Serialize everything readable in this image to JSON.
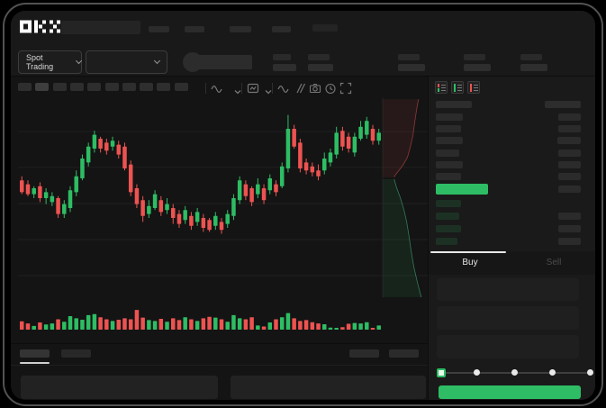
{
  "brand": "OKX",
  "colors": {
    "up": "#2ebd64",
    "down": "#ed5351",
    "depth_ask_fill": "rgba(237,83,81,0.09)",
    "depth_ask_line": "rgba(237,83,81,0.55)",
    "depth_bid_fill": "rgba(46,189,100,0.10)",
    "depth_bid_line": "rgba(80,200,150,0.55)",
    "grid": "#1f1f1f",
    "price_bar": "#2ebd64"
  },
  "header": {
    "market_selector_label": "Spot Trading"
  },
  "trade_panel": {
    "buy_tab": "Buy",
    "sell_tab": "Sell"
  },
  "skeleton": {
    "topnav_items": [
      23,
      22,
      24,
      21
    ],
    "topnav_right_items": [
      28
    ],
    "stat_groups": [
      [
        20,
        26
      ],
      [
        24,
        28
      ],
      [
        24,
        30
      ],
      [
        24,
        30
      ],
      [
        24,
        30
      ]
    ],
    "timeframe_chip_count": 10,
    "active_timeframe_index": 1,
    "orderbook": {
      "header": [
        40,
        40
      ],
      "asks": [
        [
          30,
          25
        ],
        [
          28,
          25
        ],
        [
          30,
          26
        ],
        [
          26,
          25
        ],
        [
          30,
          25
        ],
        [
          28,
          25
        ]
      ],
      "price_row_width": 58,
      "bids": [
        [
          28,
          25
        ],
        [
          26,
          25
        ],
        [
          28,
          25
        ],
        [
          24,
          25
        ]
      ]
    },
    "bottom_tabs": [
      33,
      33
    ],
    "bottom_right_items": [
      33,
      33
    ],
    "bottom_box_widths": [
      219,
      217
    ],
    "form_field_count": 3,
    "slider_stop_count": 5
  },
  "chart_data": {
    "type": "candlestick",
    "title": "",
    "xlabel": "",
    "ylabel": "",
    "price_scale_norm": [
      0,
      100
    ],
    "grid_levels_norm": [
      83.6,
      65.5,
      47.3,
      29.1,
      10.9
    ],
    "candles_ohlc": [
      [
        59,
        61,
        52,
        53
      ],
      [
        57,
        59,
        51,
        52
      ],
      [
        52,
        56,
        50,
        55
      ],
      [
        56,
        58,
        48,
        50
      ],
      [
        50,
        55,
        47,
        53
      ],
      [
        48,
        53,
        46,
        51
      ],
      [
        50,
        51,
        40,
        42
      ],
      [
        42,
        49,
        40,
        47
      ],
      [
        45,
        56,
        43,
        54
      ],
      [
        53,
        64,
        51,
        61
      ],
      [
        60,
        72,
        59,
        70
      ],
      [
        68,
        78,
        66,
        76
      ],
      [
        75,
        84,
        73,
        82
      ],
      [
        80,
        81,
        73,
        75
      ],
      [
        78,
        80,
        72,
        74
      ],
      [
        76,
        81,
        74,
        79
      ],
      [
        77,
        79,
        70,
        72
      ],
      [
        76,
        78,
        64,
        65
      ],
      [
        67,
        69,
        51,
        53
      ],
      [
        55,
        57,
        45,
        47
      ],
      [
        49,
        51,
        38,
        41
      ],
      [
        42,
        49,
        40,
        46
      ],
      [
        45,
        54,
        44,
        52
      ],
      [
        49,
        51,
        41,
        43
      ],
      [
        44,
        50,
        42,
        47
      ],
      [
        45,
        47,
        37,
        40
      ],
      [
        42,
        44,
        35,
        37
      ],
      [
        39,
        46,
        37,
        44
      ],
      [
        41,
        43,
        34,
        36
      ],
      [
        38,
        45,
        36,
        43
      ],
      [
        40,
        42,
        33,
        35
      ],
      [
        39,
        40,
        33,
        34
      ],
      [
        36,
        43,
        34,
        41
      ],
      [
        38,
        40,
        32,
        34
      ],
      [
        37,
        44,
        35,
        42
      ],
      [
        41,
        52,
        39,
        50
      ],
      [
        49,
        61,
        47,
        59
      ],
      [
        57,
        59,
        49,
        51
      ],
      [
        55,
        56,
        46,
        48
      ],
      [
        52,
        60,
        50,
        57
      ],
      [
        55,
        57,
        47,
        49
      ],
      [
        54,
        62,
        52,
        60
      ],
      [
        57,
        59,
        51,
        53
      ],
      [
        56,
        68,
        55,
        66
      ],
      [
        65,
        92,
        63,
        85
      ],
      [
        85,
        87,
        75,
        76
      ],
      [
        78,
        80,
        63,
        65
      ],
      [
        68,
        70,
        62,
        64
      ],
      [
        66,
        68,
        61,
        63
      ],
      [
        64,
        67,
        59,
        61
      ],
      [
        64,
        73,
        62,
        70
      ],
      [
        68,
        75,
        66,
        73
      ],
      [
        72,
        86,
        70,
        83
      ],
      [
        84,
        86,
        74,
        76
      ],
      [
        81,
        83,
        73,
        75
      ],
      [
        73,
        83,
        71,
        81
      ],
      [
        80,
        89,
        79,
        86
      ],
      [
        82,
        91,
        80,
        89
      ],
      [
        85,
        87,
        77,
        79
      ],
      [
        79,
        85,
        77,
        83
      ]
    ],
    "volume_norm": [
      40,
      30,
      18,
      35,
      25,
      30,
      50,
      38,
      65,
      55,
      48,
      70,
      75,
      60,
      50,
      42,
      48,
      55,
      50,
      95,
      58,
      46,
      42,
      52,
      38,
      55,
      46,
      60,
      50,
      42,
      55,
      62,
      58,
      50,
      38,
      70,
      55,
      50,
      60,
      20,
      15,
      35,
      50,
      60,
      80,
      55,
      42,
      46,
      36,
      30,
      26,
      10,
      8,
      12,
      28,
      32,
      30,
      36,
      8,
      20
    ],
    "depth_silhouette": {
      "asks_line": [
        [
          0.78,
          0.01
        ],
        [
          0.74,
          0.06
        ],
        [
          0.7,
          0.12
        ],
        [
          0.66,
          0.19
        ],
        [
          0.6,
          0.25
        ],
        [
          0.54,
          0.3
        ],
        [
          0.44,
          0.34
        ],
        [
          0.34,
          0.37
        ],
        [
          0.27,
          0.39
        ],
        [
          0.25,
          0.4
        ]
      ],
      "bids_line": [
        [
          0.25,
          0.41
        ],
        [
          0.3,
          0.45
        ],
        [
          0.38,
          0.5
        ],
        [
          0.46,
          0.56
        ],
        [
          0.52,
          0.62
        ],
        [
          0.57,
          0.69
        ],
        [
          0.62,
          0.77
        ],
        [
          0.68,
          0.85
        ],
        [
          0.76,
          0.93
        ],
        [
          0.84,
          1.0
        ]
      ]
    },
    "legend": [],
    "grid_on": true
  }
}
